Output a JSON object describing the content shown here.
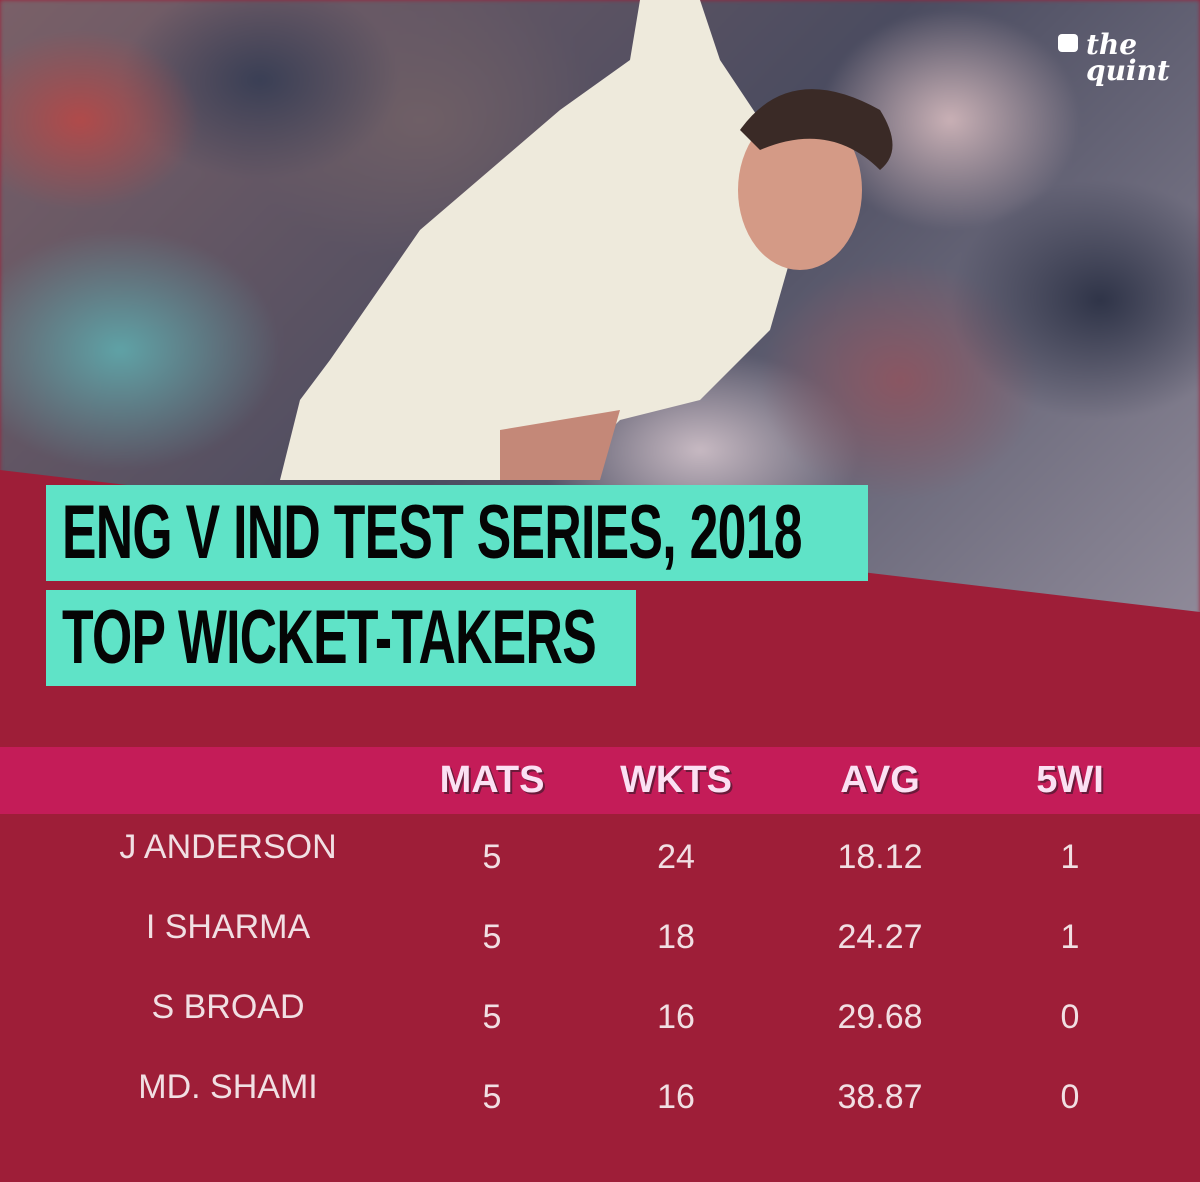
{
  "logo": {
    "text_line1": "the",
    "text_line2": "quint",
    "icon": "speech-bubble-icon"
  },
  "title": {
    "line1": "ENG V IND TEST SERIES, 2018",
    "line2": "TOP WICKET-TAKERS"
  },
  "colors": {
    "background": "#9e1e38",
    "header_band": "#c41c58",
    "title_box": "#5fe3c7"
  },
  "chart_data": {
    "type": "table",
    "title": "ENG V IND TEST SERIES, 2018 — TOP WICKET-TAKERS",
    "columns": [
      "",
      "MATS",
      "WKTS",
      "AVG",
      "5WI"
    ],
    "rows": [
      {
        "name": "J ANDERSON",
        "mats": "5",
        "wkts": "24",
        "avg": "18.12",
        "fivewi": "1"
      },
      {
        "name": "I SHARMA",
        "mats": "5",
        "wkts": "18",
        "avg": "24.27",
        "fivewi": "1"
      },
      {
        "name": "S BROAD",
        "mats": "5",
        "wkts": "16",
        "avg": "29.68",
        "fivewi": "0"
      },
      {
        "name": "MD. SHAMI",
        "mats": "5",
        "wkts": "16",
        "avg": "38.87",
        "fivewi": "0"
      }
    ]
  }
}
